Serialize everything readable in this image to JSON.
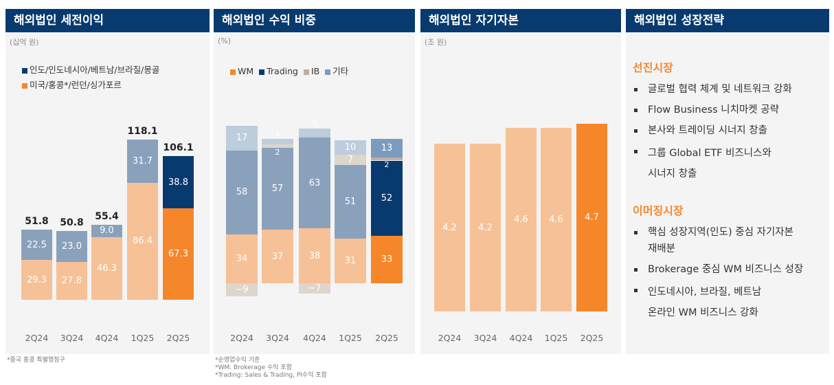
{
  "colors": {
    "navy": "#073a6e",
    "orange": "#f5862a",
    "light_orange": "#f6c196",
    "light_blue": "#8aa1bb",
    "ib_light": "#ded5cc",
    "ib_dark": "#c2ac9c",
    "other_light": "#bdcddc",
    "other_dark": "#7b9bbf"
  },
  "panels": {
    "p1": {
      "title": "해외법인 세전이익",
      "unit": "(십억 원)",
      "footnote": "*중국 홍콩 특별행정구"
    },
    "p2": {
      "title": "해외법인 수익 비중",
      "unit": "(%)",
      "footnotes": [
        "*순영업수익 기준",
        "*WM: Brokerage 수익 포함",
        "*Trading: Sales & Trading, PI수익 포함"
      ]
    },
    "p3": {
      "title": "해외법인 자기자본",
      "unit": "(조 원)"
    },
    "p4": {
      "title": "해외법인 성장전략",
      "sections": [
        {
          "heading": "선진시장",
          "items": [
            [
              "글로벌 협력 체계 및 네트워크 강화"
            ],
            [
              "Flow Business 니치마켓 공략"
            ],
            [
              "본사와 트레이딩 시너지 창출"
            ],
            [
              "그룹 Global ETF 비즈니스와",
              "시너지 창출"
            ]
          ]
        },
        {
          "heading": "이머징시장",
          "items": [
            [
              "핵심 성장지역(인도) 중심 자기자본",
              "재배분"
            ],
            [
              "Brokerage 중심 WM 비즈니스 성장"
            ],
            [
              "인도네시아, 브라질, 베트남",
              "온라인 WM 비즈니스 강화"
            ]
          ]
        }
      ]
    }
  },
  "chart_data": [
    {
      "type": "bar",
      "stacked": true,
      "categories": [
        "2Q24",
        "3Q24",
        "4Q24",
        "1Q25",
        "2Q25"
      ],
      "series": [
        {
          "name": "미국/홍콩*/런던/싱가포르",
          "values": [
            29.3,
            27.8,
            46.3,
            86.4,
            67.3
          ]
        },
        {
          "name": "인도/인도네시아/베트남/브라질/몽골",
          "values": [
            22.5,
            23.0,
            9.0,
            31.7,
            38.8
          ]
        }
      ],
      "totals": [
        51.8,
        50.8,
        55.4,
        118.1,
        106.1
      ],
      "legend": "top-left"
    },
    {
      "type": "bar",
      "stacked": true,
      "categories": [
        "2Q24",
        "3Q24",
        "4Q24",
        "1Q25",
        "2Q25"
      ],
      "series": [
        {
          "name": "WM",
          "values": [
            34,
            37,
            38,
            31,
            33
          ]
        },
        {
          "name": "Trading",
          "values": [
            58,
            57,
            63,
            51,
            52
          ]
        },
        {
          "name": "IB",
          "values": [
            -9,
            2,
            -7,
            7,
            2
          ]
        },
        {
          "name": "기타",
          "values": [
            17,
            4,
            6,
            10,
            13
          ]
        }
      ],
      "legend": "top"
    },
    {
      "type": "bar",
      "categories": [
        "2Q24",
        "3Q24",
        "4Q24",
        "1Q25",
        "2Q25"
      ],
      "values": [
        4.2,
        4.2,
        4.6,
        4.6,
        4.7
      ]
    }
  ]
}
